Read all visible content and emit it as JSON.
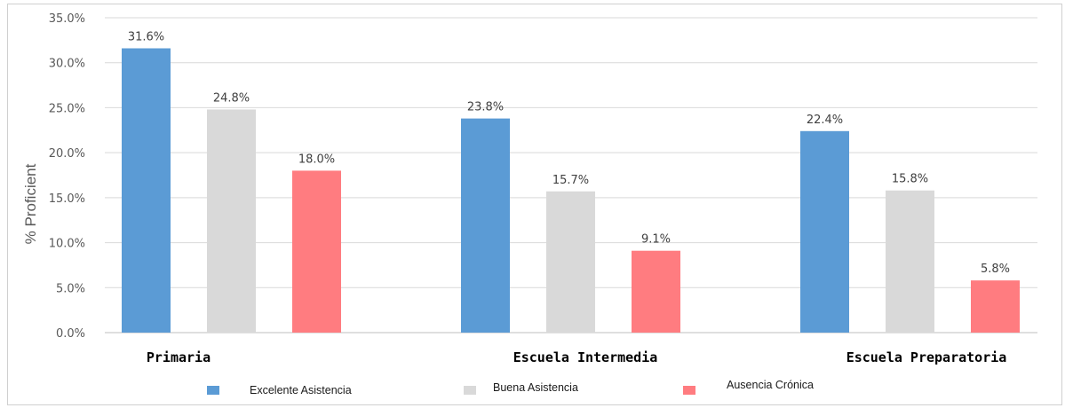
{
  "chart_data": {
    "type": "bar",
    "ylabel": "% Proficient",
    "ylim": [
      0,
      35
    ],
    "yticks": [
      "0.0%",
      "5.0%",
      "10.0%",
      "15.0%",
      "20.0%",
      "25.0%",
      "30.0%",
      "35.0%"
    ],
    "categories": [
      "Primaria",
      "Escuela Intermedia",
      "Escuela Preparatoria"
    ],
    "series": [
      {
        "name": "Excelente Asistencia",
        "color": "#5b9bd5",
        "values": [
          31.6,
          23.8,
          22.4
        ],
        "labels": [
          "31.6%",
          "23.8%",
          "22.4%"
        ]
      },
      {
        "name": "Buena Asistencia",
        "color": "#d9d9d9",
        "values": [
          24.8,
          15.7,
          15.8
        ],
        "labels": [
          "24.8%",
          "15.7%",
          "15.8%"
        ]
      },
      {
        "name": "Ausencia Crónica",
        "color": "#ff7c80",
        "values": [
          18.0,
          9.1,
          5.8
        ],
        "labels": [
          "18.0%",
          "9.1%",
          "5.8%"
        ]
      }
    ],
    "grid": true,
    "legend_position": "bottom"
  }
}
